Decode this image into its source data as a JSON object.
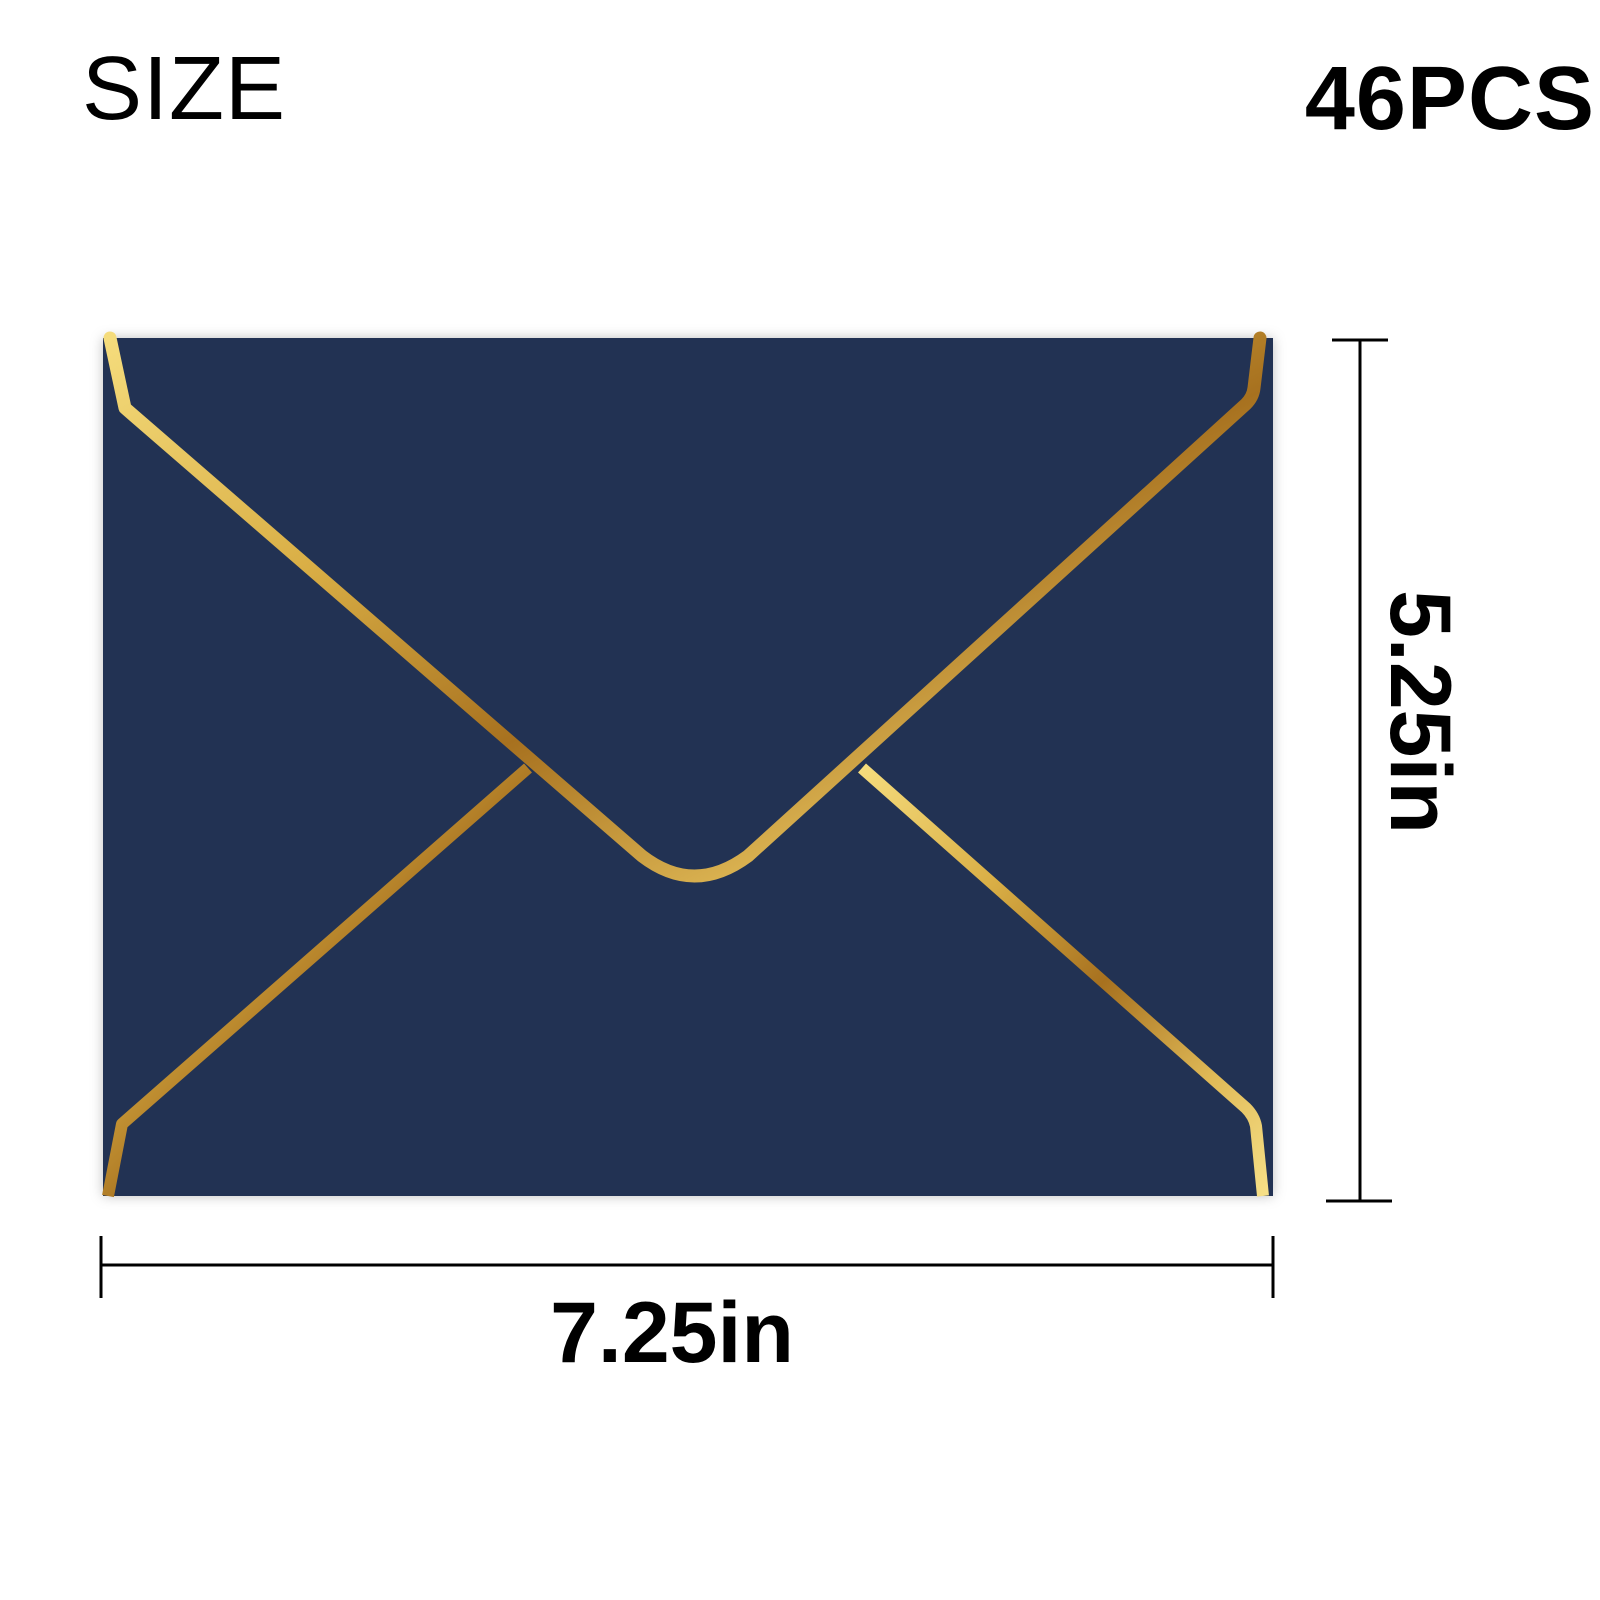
{
  "header": {
    "title": "SIZE",
    "quantity": "46PCS"
  },
  "product": {
    "name": "envelope",
    "body_color": "#233352",
    "trim_color": "#c99a32",
    "dimensions": {
      "width": "7.25in",
      "height": "5.25in"
    }
  }
}
